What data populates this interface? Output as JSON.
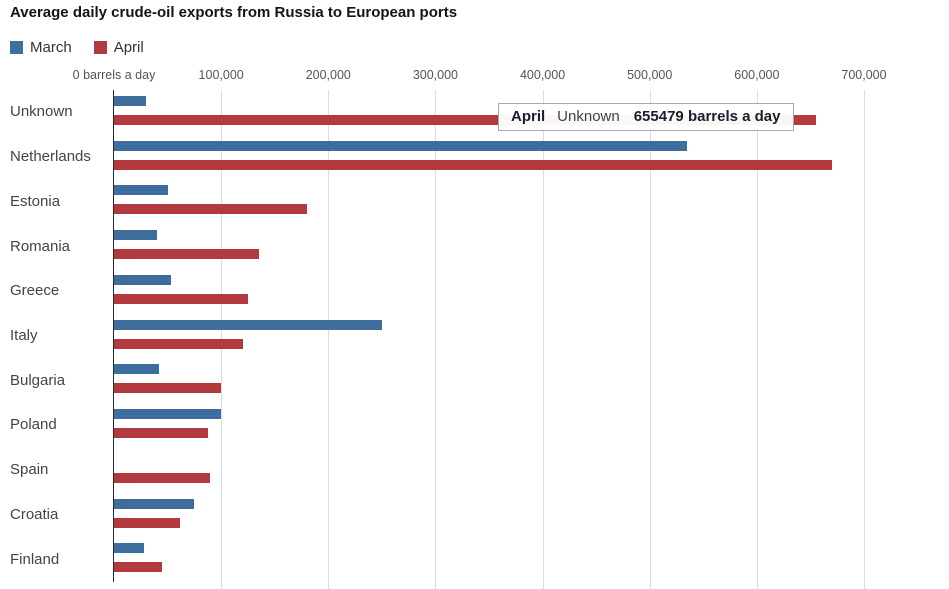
{
  "title": "Average daily crude-oil exports from Russia to European ports",
  "legend": [
    {
      "label": "March",
      "color": "#3d6e9d"
    },
    {
      "label": "April",
      "color": "#b23a3e"
    }
  ],
  "tooltip": {
    "series": "April",
    "category": "Unknown",
    "value_text": "655479 barrels a day"
  },
  "axis": {
    "tick_labels": [
      "0 barrels a day",
      "100,000",
      "200,000",
      "300,000",
      "400,000",
      "500,000",
      "600,000",
      "700,000"
    ]
  },
  "chart_data": {
    "type": "bar",
    "orientation": "horizontal",
    "title": "Average daily crude-oil exports from Russia to European ports",
    "categories": [
      "Unknown",
      "Netherlands",
      "Estonia",
      "Romania",
      "Greece",
      "Italy",
      "Bulgaria",
      "Poland",
      "Spain",
      "Croatia",
      "Finland"
    ],
    "series": [
      {
        "name": "March",
        "color": "#3d6e9d",
        "values": [
          30000,
          535000,
          50000,
          40000,
          53000,
          250000,
          42000,
          100000,
          0,
          75000,
          28000
        ]
      },
      {
        "name": "April",
        "color": "#b23a3e",
        "values": [
          655479,
          670000,
          180000,
          135000,
          125000,
          120000,
          100000,
          88000,
          90000,
          62000,
          45000
        ]
      }
    ],
    "xlabel": "barrels a day",
    "xlim": [
      0,
      700000
    ],
    "xticks": [
      0,
      100000,
      200000,
      300000,
      400000,
      500000,
      600000,
      700000
    ],
    "grid": true,
    "legend_position": "top-left"
  }
}
